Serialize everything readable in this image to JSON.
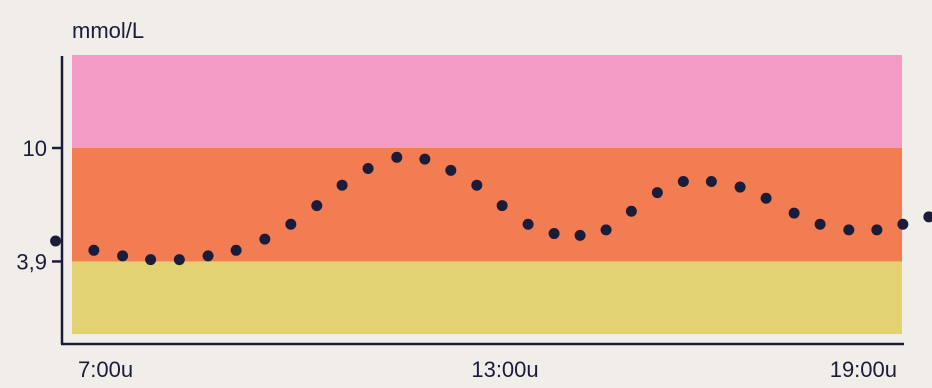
{
  "chart_data": {
    "type": "scatter",
    "title": "",
    "ylabel": "mmol/L",
    "xlabel": "",
    "x_unit": "hour",
    "ylim": [
      0,
      15
    ],
    "xlim": [
      6.8,
      19.8
    ],
    "x_ticks": [
      {
        "value": 7,
        "label": "7:00u"
      },
      {
        "value": 13,
        "label": "13:00u"
      },
      {
        "value": 19,
        "label": "19:00u"
      }
    ],
    "y_ticks": [
      {
        "value": 3.9,
        "label": "3,9"
      },
      {
        "value": 10,
        "label": "10"
      }
    ],
    "bands": [
      {
        "from": 10,
        "to": 15,
        "color": "#f39bc4"
      },
      {
        "from": 3.9,
        "to": 10,
        "color": "#f37d53"
      },
      {
        "from": 0,
        "to": 3.9,
        "color": "#e3d274"
      }
    ],
    "series": [
      {
        "color": "#1b1c3a",
        "points": [
          {
            "x": 6.94,
            "y": 5.0
          },
          {
            "x": 7.5,
            "y": 4.5
          },
          {
            "x": 7.92,
            "y": 4.2
          },
          {
            "x": 8.33,
            "y": 4.0
          },
          {
            "x": 8.75,
            "y": 4.0
          },
          {
            "x": 9.17,
            "y": 4.2
          },
          {
            "x": 9.58,
            "y": 4.5
          },
          {
            "x": 10.0,
            "y": 5.1
          },
          {
            "x": 10.38,
            "y": 5.9
          },
          {
            "x": 10.76,
            "y": 6.9
          },
          {
            "x": 11.13,
            "y": 8.0
          },
          {
            "x": 11.51,
            "y": 8.9
          },
          {
            "x": 11.93,
            "y": 9.5
          },
          {
            "x": 12.34,
            "y": 9.4
          },
          {
            "x": 12.72,
            "y": 8.8
          },
          {
            "x": 13.1,
            "y": 8.0
          },
          {
            "x": 13.47,
            "y": 6.9
          },
          {
            "x": 13.85,
            "y": 5.9
          },
          {
            "x": 14.23,
            "y": 5.4
          },
          {
            "x": 14.61,
            "y": 5.3
          },
          {
            "x": 14.99,
            "y": 5.6
          },
          {
            "x": 15.36,
            "y": 6.6
          },
          {
            "x": 15.74,
            "y": 7.6
          },
          {
            "x": 16.12,
            "y": 8.2
          },
          {
            "x": 16.53,
            "y": 8.2
          },
          {
            "x": 16.95,
            "y": 7.9
          },
          {
            "x": 17.33,
            "y": 7.3
          },
          {
            "x": 17.74,
            "y": 6.5
          },
          {
            "x": 18.12,
            "y": 5.9
          },
          {
            "x": 18.54,
            "y": 5.6
          },
          {
            "x": 18.95,
            "y": 5.6
          },
          {
            "x": 19.33,
            "y": 5.9
          },
          {
            "x": 19.71,
            "y": 6.3
          },
          {
            "x": 20.48,
            "y": 7.1
          }
        ]
      }
    ]
  }
}
